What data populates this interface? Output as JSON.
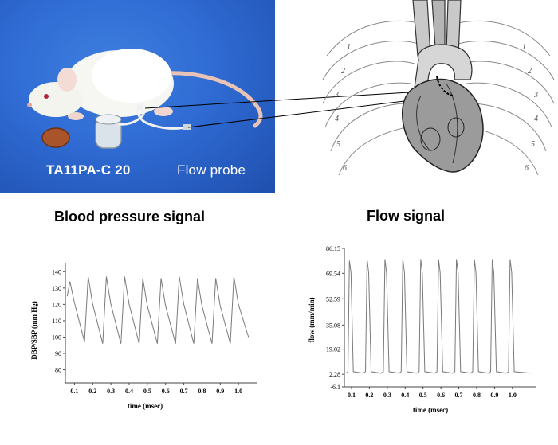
{
  "photo": {
    "device_label": "TA11PA-C 20",
    "probe_label": "Flow probe"
  },
  "headings": {
    "bp": "Blood pressure signal",
    "flow": "Flow signal"
  },
  "anatomy": {
    "rib_numbers": [
      "1",
      "2",
      "3",
      "4",
      "5",
      "6",
      "1",
      "2",
      "3",
      "4",
      "5",
      "6"
    ]
  },
  "colors": {
    "photo_background": "#2f6bd3",
    "trace": "#7a7a7a"
  },
  "chart_data": [
    {
      "type": "line",
      "title": "",
      "xlabel": "time (msec)",
      "ylabel": "DBP/SBP (mm Hg)",
      "x_ticks": [
        "0.1",
        "0.2",
        "0.3",
        "0.4",
        "0.5",
        "0.6",
        "0.7",
        "0.8",
        "0.9",
        "1.0"
      ],
      "y_ticks": [
        "80",
        "90",
        "100",
        "110",
        "120",
        "130",
        "140"
      ],
      "xlim": [
        0.05,
        1.1
      ],
      "ylim": [
        72,
        145
      ],
      "grid": false,
      "series": [
        {
          "x": [
            0.06,
            0.075,
            0.1,
            0.155,
            0.175,
            0.2,
            0.255,
            0.275,
            0.3,
            0.355,
            0.375,
            0.4,
            0.455,
            0.475,
            0.5,
            0.555,
            0.575,
            0.6,
            0.655,
            0.675,
            0.7,
            0.755,
            0.775,
            0.8,
            0.855,
            0.875,
            0.9,
            0.955,
            0.975,
            1.0,
            1.055
          ],
          "y": [
            125,
            134,
            121,
            97,
            137,
            120,
            96,
            137,
            120,
            96,
            137,
            120,
            96,
            136,
            119,
            96,
            136,
            119,
            96,
            137,
            120,
            96,
            136,
            119,
            96,
            136,
            119,
            96,
            137,
            120,
            100
          ]
        }
      ]
    },
    {
      "type": "line",
      "title": "",
      "xlabel": "time (msec)",
      "ylabel": "flow (mm/min)",
      "x_ticks": [
        "0.1",
        "0.2",
        "0.3",
        "0.4",
        "0.5",
        "0.6",
        "0.7",
        "0.8",
        "0.9",
        "1.0"
      ],
      "y_ticks": [
        "-6.1",
        "2.28",
        "19.02",
        "35.08",
        "52.59",
        "69.54",
        "86.15"
      ],
      "xlim": [
        0.06,
        1.13
      ],
      "ylim": [
        -6.1,
        86.15
      ],
      "grid": false,
      "series": [
        {
          "x": [
            0.07,
            0.08,
            0.088,
            0.097,
            0.11,
            0.165,
            0.178,
            0.187,
            0.196,
            0.21,
            0.265,
            0.278,
            0.287,
            0.296,
            0.31,
            0.365,
            0.378,
            0.387,
            0.396,
            0.41,
            0.465,
            0.478,
            0.487,
            0.496,
            0.51,
            0.565,
            0.578,
            0.587,
            0.596,
            0.61,
            0.665,
            0.678,
            0.687,
            0.696,
            0.71,
            0.765,
            0.778,
            0.787,
            0.796,
            0.81,
            0.865,
            0.878,
            0.887,
            0.896,
            0.91,
            0.965,
            0.978,
            0.987,
            0.996,
            1.01,
            1.1
          ],
          "y": [
            3,
            4,
            78,
            70,
            4,
            3,
            4,
            79,
            70,
            4,
            3,
            4,
            79,
            70,
            4,
            3,
            4,
            79,
            70,
            4,
            3,
            4,
            79,
            70,
            4,
            3,
            4,
            79,
            70,
            4,
            3,
            4,
            79,
            70,
            4,
            3,
            4,
            79,
            70,
            4,
            3,
            4,
            79,
            70,
            4,
            3,
            4,
            79,
            70,
            4,
            3
          ]
        }
      ]
    }
  ]
}
